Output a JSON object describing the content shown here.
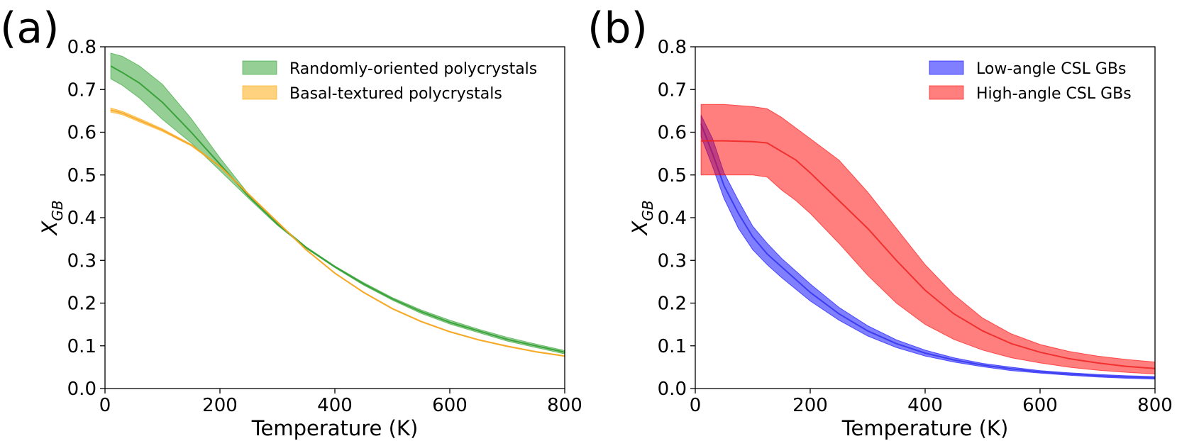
{
  "colors": {
    "random_fill": "#2ca02c",
    "random_line": "#2a9a2a",
    "basal_fill": "#ffa500",
    "basal_line": "#f5a623",
    "low_fill": "#0000ff",
    "low_line": "#3333ee",
    "high_fill": "#ff0000",
    "high_line": "#ee2222"
  },
  "chart_data": [
    {
      "panel_label": "(a)",
      "type": "area",
      "title": "",
      "xlabel": "Temperature (K)",
      "ylabel": "X",
      "ylabel_sub": "GB",
      "xlim": [
        0,
        800
      ],
      "ylim": [
        0.0,
        0.8
      ],
      "xticks": [
        0,
        200,
        400,
        600,
        800
      ],
      "xtick_labels": [
        "0",
        "200",
        "400",
        "600",
        "800"
      ],
      "yticks": [
        0.0,
        0.1,
        0.2,
        0.3,
        0.4,
        0.5,
        0.6,
        0.7,
        0.8
      ],
      "ytick_labels": [
        "0.0",
        "0.1",
        "0.2",
        "0.3",
        "0.4",
        "0.5",
        "0.6",
        "0.7",
        "0.8"
      ],
      "legend_position": "top-right",
      "series": [
        {
          "name": "Randomly-oriented polycrystals",
          "color_key": "random",
          "x": [
            10,
            30,
            60,
            100,
            150,
            200,
            250,
            300,
            350,
            400,
            450,
            500,
            550,
            600,
            650,
            700,
            750,
            800
          ],
          "mean": [
            0.755,
            0.74,
            0.715,
            0.67,
            0.6,
            0.525,
            0.45,
            0.385,
            0.33,
            0.285,
            0.245,
            0.21,
            0.18,
            0.155,
            0.135,
            0.115,
            0.1,
            0.085
          ],
          "upper": [
            0.785,
            0.778,
            0.755,
            0.712,
            0.632,
            0.54,
            0.455,
            0.388,
            0.332,
            0.287,
            0.248,
            0.213,
            0.184,
            0.16,
            0.139,
            0.12,
            0.104,
            0.089
          ],
          "lower": [
            0.725,
            0.71,
            0.68,
            0.63,
            0.575,
            0.51,
            0.445,
            0.382,
            0.328,
            0.283,
            0.242,
            0.207,
            0.176,
            0.151,
            0.131,
            0.111,
            0.096,
            0.081
          ]
        },
        {
          "name": "Basal-textured polycrystals",
          "color_key": "basal",
          "x": [
            10,
            30,
            60,
            100,
            150,
            200,
            250,
            300,
            350,
            400,
            450,
            500,
            550,
            600,
            650,
            700,
            750,
            800
          ],
          "mean": [
            0.652,
            0.645,
            0.628,
            0.605,
            0.57,
            0.52,
            0.455,
            0.39,
            0.325,
            0.27,
            0.225,
            0.187,
            0.157,
            0.133,
            0.114,
            0.099,
            0.086,
            0.076
          ],
          "upper": [
            0.657,
            0.649,
            0.632,
            0.608,
            0.572,
            0.521,
            0.456,
            0.391,
            0.326,
            0.271,
            0.226,
            0.188,
            0.158,
            0.134,
            0.115,
            0.1,
            0.087,
            0.077
          ],
          "lower": [
            0.647,
            0.641,
            0.624,
            0.602,
            0.568,
            0.519,
            0.454,
            0.389,
            0.324,
            0.269,
            0.224,
            0.186,
            0.156,
            0.132,
            0.113,
            0.098,
            0.085,
            0.075
          ]
        }
      ]
    },
    {
      "panel_label": "(b)",
      "type": "area",
      "title": "",
      "xlabel": "Temperature (K)",
      "ylabel": "X",
      "ylabel_sub": "GB",
      "xlim": [
        0,
        800
      ],
      "ylim": [
        0.0,
        0.8
      ],
      "xticks": [
        0,
        200,
        400,
        600,
        800
      ],
      "xtick_labels": [
        "0",
        "200",
        "400",
        "600",
        "800"
      ],
      "yticks": [
        0.0,
        0.1,
        0.2,
        0.3,
        0.4,
        0.5,
        0.6,
        0.7,
        0.8
      ],
      "ytick_labels": [
        "0.0",
        "0.1",
        "0.2",
        "0.3",
        "0.4",
        "0.5",
        "0.6",
        "0.7",
        "0.8"
      ],
      "legend_position": "top-right",
      "series": [
        {
          "name": "Low-angle CSL GBs",
          "color_key": "low",
          "x": [
            10,
            30,
            50,
            75,
            100,
            125,
            150,
            200,
            250,
            300,
            350,
            400,
            450,
            500,
            550,
            600,
            650,
            700,
            750,
            800
          ],
          "mean": [
            0.62,
            0.55,
            0.475,
            0.41,
            0.355,
            0.315,
            0.285,
            0.225,
            0.175,
            0.135,
            0.105,
            0.083,
            0.067,
            0.055,
            0.046,
            0.039,
            0.034,
            0.03,
            0.027,
            0.025
          ],
          "upper": [
            0.64,
            0.585,
            0.505,
            0.44,
            0.38,
            0.34,
            0.305,
            0.245,
            0.19,
            0.147,
            0.114,
            0.09,
            0.072,
            0.059,
            0.05,
            0.042,
            0.037,
            0.033,
            0.03,
            0.028
          ],
          "lower": [
            0.59,
            0.52,
            0.445,
            0.375,
            0.325,
            0.29,
            0.26,
            0.205,
            0.16,
            0.123,
            0.096,
            0.076,
            0.062,
            0.051,
            0.042,
            0.036,
            0.031,
            0.027,
            0.024,
            0.022
          ]
        },
        {
          "name": "High-angle CSL GBs",
          "color_key": "high",
          "x": [
            10,
            50,
            100,
            125,
            150,
            175,
            200,
            250,
            300,
            350,
            400,
            450,
            500,
            550,
            600,
            650,
            700,
            750,
            800
          ],
          "mean": [
            0.58,
            0.58,
            0.578,
            0.575,
            0.555,
            0.535,
            0.505,
            0.44,
            0.375,
            0.3,
            0.23,
            0.175,
            0.135,
            0.105,
            0.085,
            0.07,
            0.06,
            0.052,
            0.047
          ],
          "upper": [
            0.665,
            0.665,
            0.66,
            0.655,
            0.635,
            0.61,
            0.585,
            0.535,
            0.46,
            0.375,
            0.29,
            0.22,
            0.165,
            0.128,
            0.103,
            0.087,
            0.076,
            0.068,
            0.062
          ],
          "lower": [
            0.5,
            0.5,
            0.5,
            0.495,
            0.465,
            0.44,
            0.41,
            0.34,
            0.265,
            0.2,
            0.15,
            0.115,
            0.09,
            0.072,
            0.06,
            0.05,
            0.043,
            0.038,
            0.034
          ]
        }
      ]
    }
  ]
}
